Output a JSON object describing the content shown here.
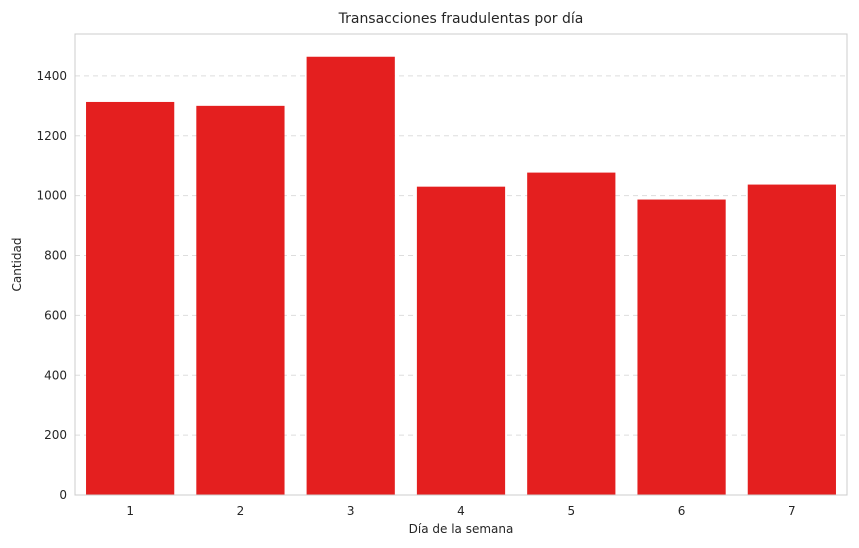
{
  "chart_data": {
    "type": "bar",
    "title": "Transacciones fraudulentas por día",
    "xlabel": "Día de la semana",
    "ylabel": "Cantidad",
    "categories": [
      "1",
      "2",
      "3",
      "4",
      "5",
      "6",
      "7"
    ],
    "values": [
      1313,
      1300,
      1464,
      1030,
      1077,
      987,
      1037
    ],
    "ylim": [
      0,
      1540
    ],
    "yticks": [
      0,
      200,
      400,
      600,
      800,
      1000,
      1200,
      1400
    ],
    "grid": "y-dashed",
    "bar_color": "#E41F1F",
    "grid_color": "#DDDDDD",
    "frame_color": "#CCCCCC"
  }
}
